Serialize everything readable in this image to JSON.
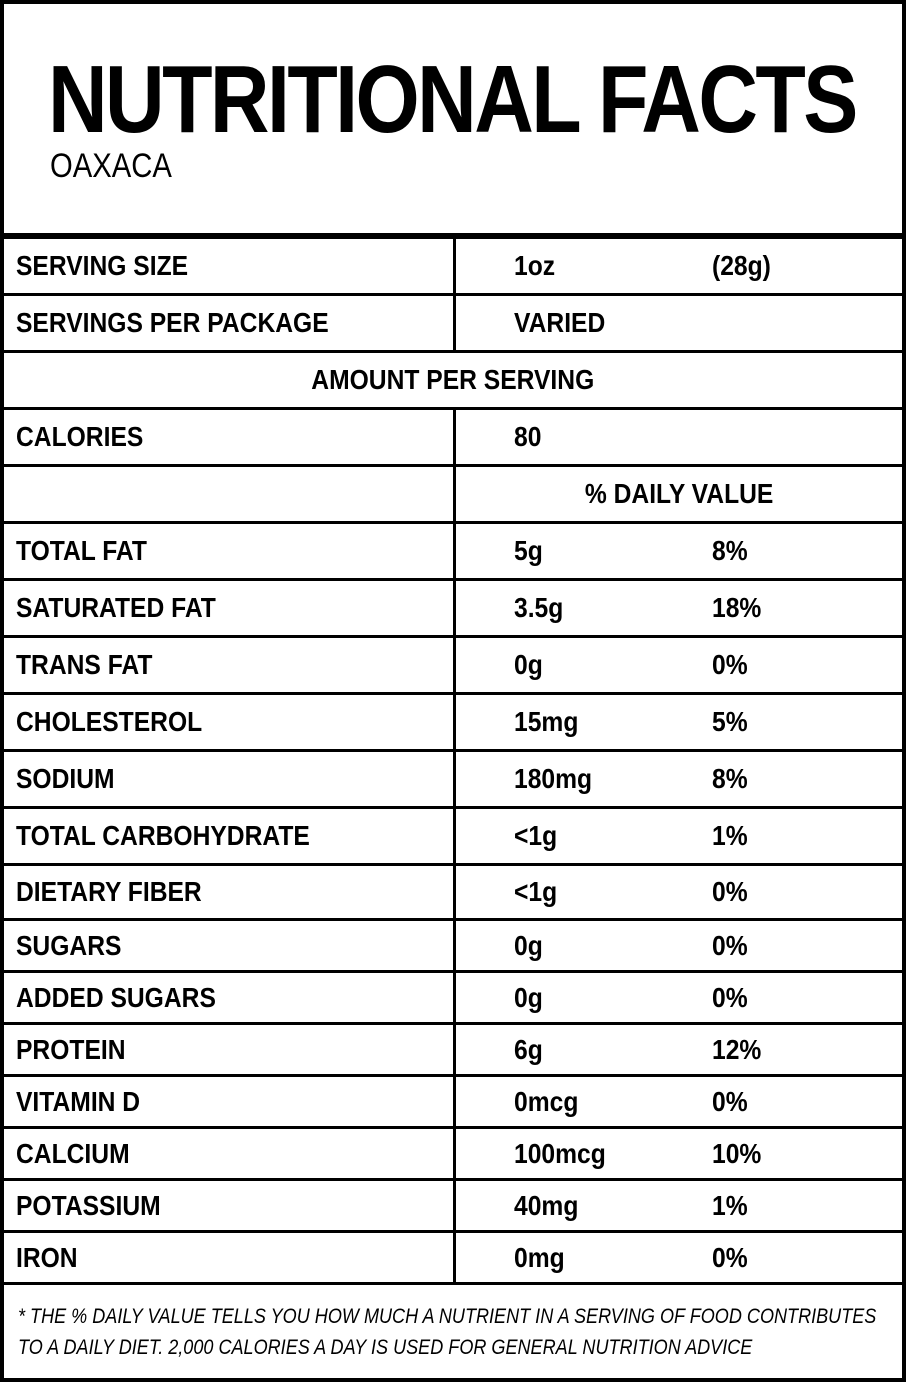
{
  "header": {
    "title": "NUTRITIONAL FACTS",
    "subtitle": "OAXACA"
  },
  "serving": {
    "size_label": "SERVING SIZE",
    "size_value": "1oz",
    "size_grams": "(28g)",
    "per_package_label": "SERVINGS PER PACKAGE",
    "per_package_value": "VARIED"
  },
  "amount_per_serving": "AMOUNT PER SERVING",
  "calories": {
    "label": "CALORIES",
    "value": "80"
  },
  "daily_value_header": "% DAILY VALUE",
  "nutrients": [
    {
      "name": "TOTAL FAT",
      "amount": "5g",
      "dv": "8%"
    },
    {
      "name": "SATURATED FAT",
      "amount": "3.5g",
      "dv": "18%"
    },
    {
      "name": "TRANS FAT",
      "amount": "0g",
      "dv": "0%"
    },
    {
      "name": "CHOLESTEROL",
      "amount": "15mg",
      "dv": "5%"
    },
    {
      "name": "SODIUM",
      "amount": "180mg",
      "dv": "8%"
    },
    {
      "name": "TOTAL CARBOHYDRATE",
      "amount": "<1g",
      "dv": "1%"
    },
    {
      "name": "DIETARY FIBER",
      "amount": "<1g",
      "dv": "0%"
    },
    {
      "name": "SUGARS",
      "amount": "0g",
      "dv": "0%"
    },
    {
      "name": "ADDED SUGARS",
      "amount": "0g",
      "dv": "0%"
    },
    {
      "name": "PROTEIN",
      "amount": "6g",
      "dv": "12%"
    },
    {
      "name": "VITAMIN D",
      "amount": "0mcg",
      "dv": "0%"
    },
    {
      "name": "CALCIUM",
      "amount": "100mcg",
      "dv": "10%"
    },
    {
      "name": "POTASSIUM",
      "amount": "40mg",
      "dv": "1%"
    },
    {
      "name": "IRON",
      "amount": "0mg",
      "dv": "0%"
    }
  ],
  "footnote": {
    "line1": "* THE % DAILY VALUE TELLS YOU HOW MUCH A NUTRIENT IN A SERVING OF FOOD CONTRIBUTES",
    "line2": "TO A DAILY DIET. 2,000 CALORIES A DAY IS USED FOR GENERAL NUTRITION ADVICE"
  }
}
